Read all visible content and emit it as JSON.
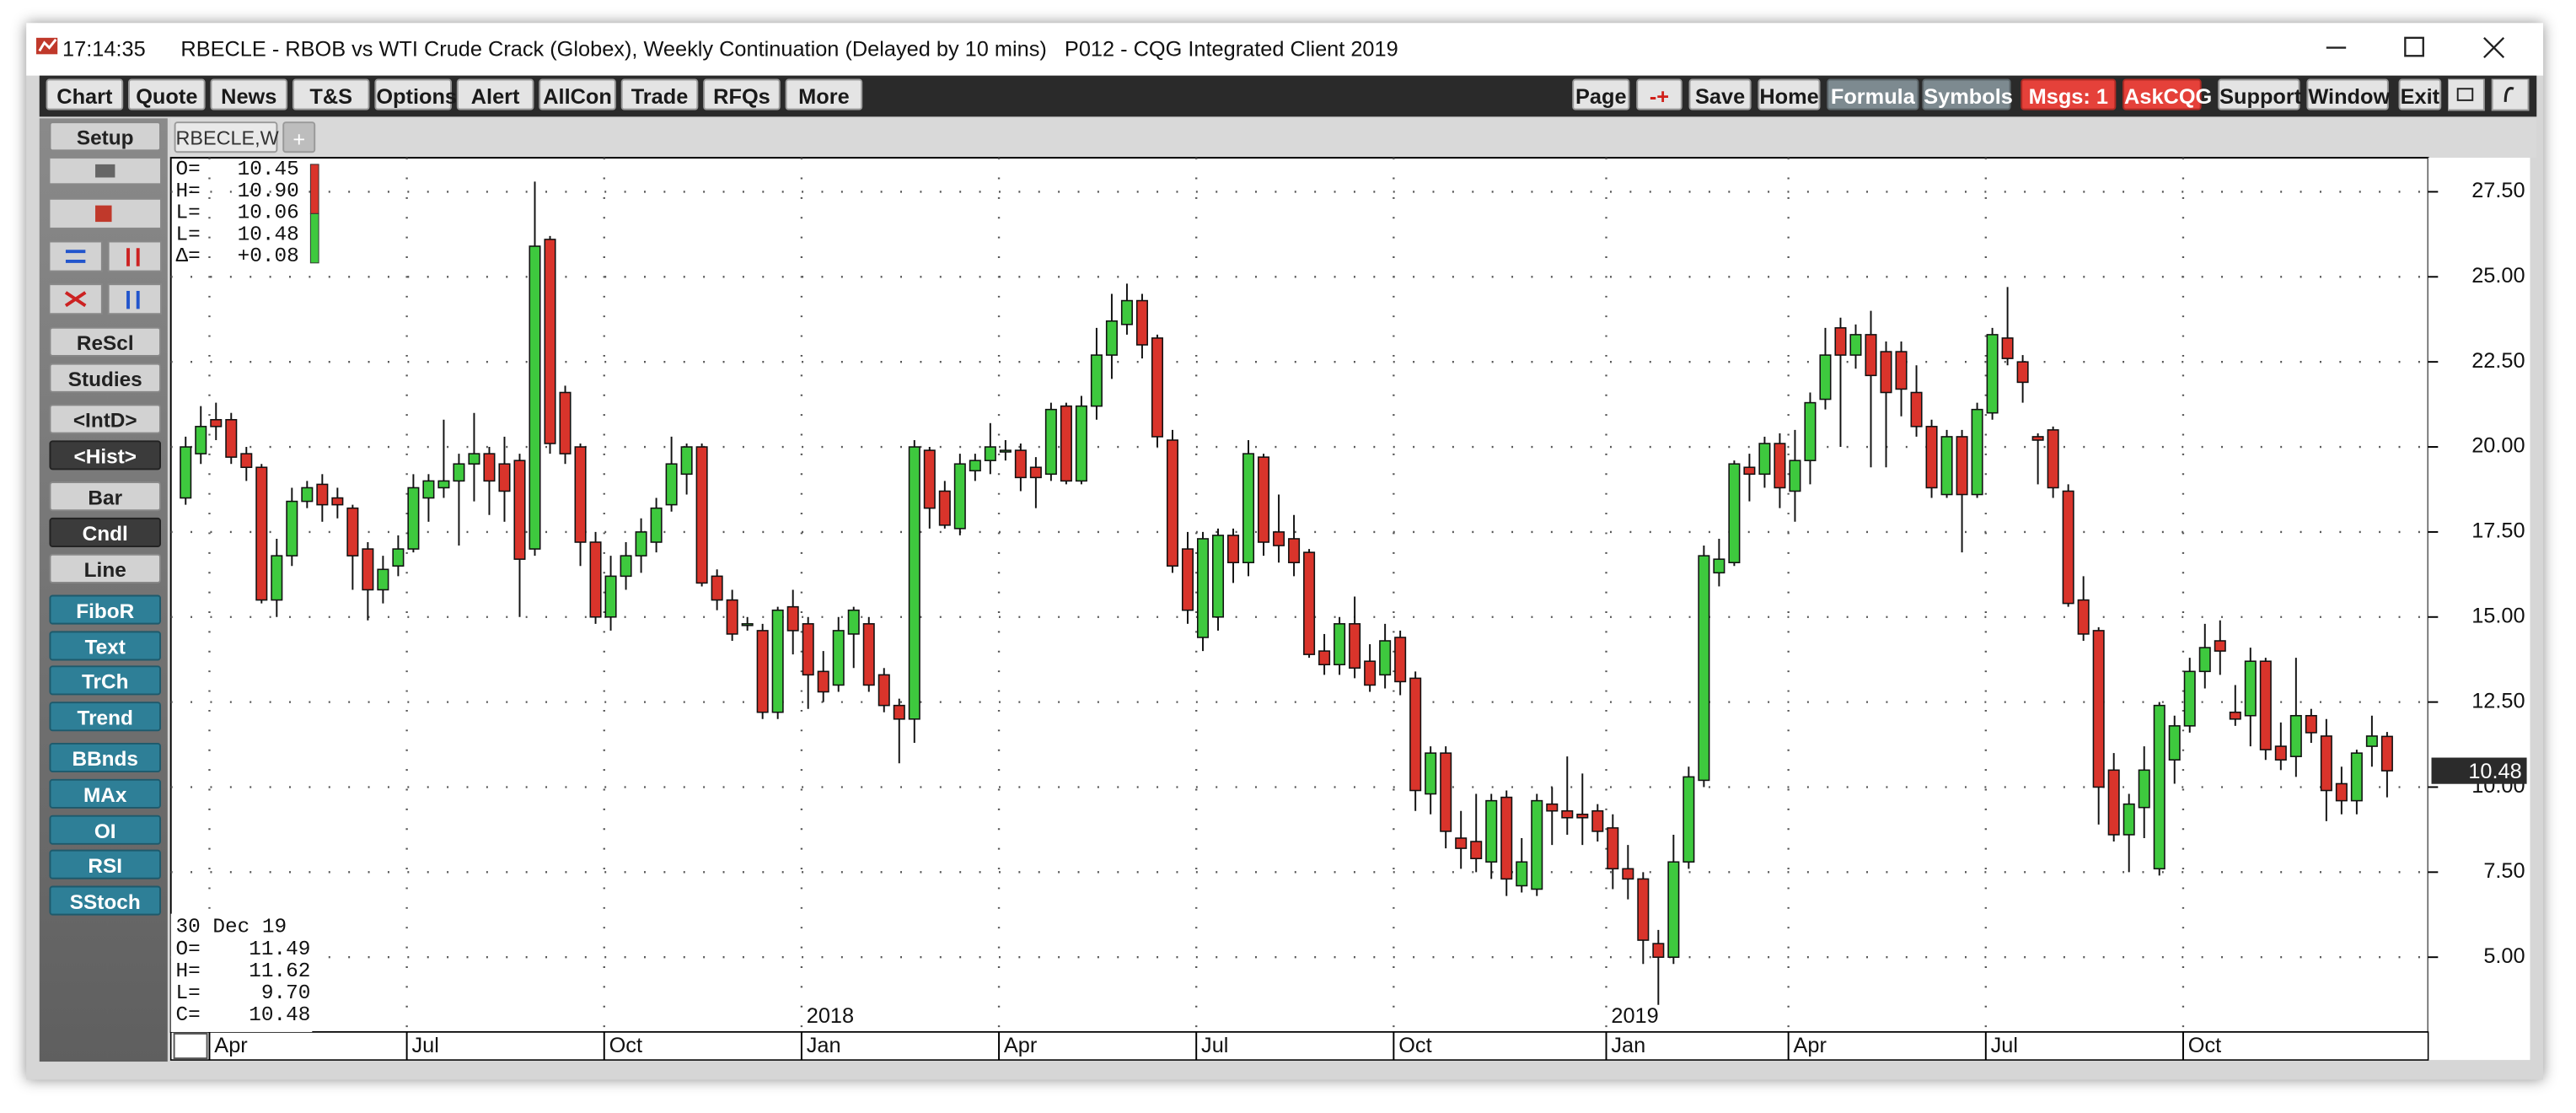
{
  "window": {
    "time": "17:14:35",
    "title": "RBECLE - RBOB vs WTI Crude Crack (Globex), Weekly Continuation (Delayed by 10 mins)   P012 - CQG Integrated Client 2019"
  },
  "toolbar_left": [
    "Chart",
    "Quote",
    "News",
    "T&S",
    "Options",
    "Alert",
    "AllCon",
    "Trade",
    "RFQs",
    "More"
  ],
  "toolbar_right": [
    "Page",
    "-+",
    "Save",
    "Home",
    "Formula",
    "Symbols",
    "Msgs: 1",
    "AskCQG",
    "Support",
    "Window",
    "Exit"
  ],
  "sidebar": [
    "Setup",
    "ReScl",
    "Studies",
    "<IntD>",
    "<Hist>",
    "Bar",
    "Cndl",
    "Line",
    "FiboR",
    "Text",
    "TrCh",
    "Trend",
    "BBnds",
    "MAx",
    "OI",
    "RSI",
    "SStoch"
  ],
  "tab": "RBECLE,W",
  "tab_add": "+",
  "readout_top": [
    {
      "label": "O=",
      "value": "10.45"
    },
    {
      "label": "H=",
      "value": "10.90"
    },
    {
      "label": "L=",
      "value": "10.06"
    },
    {
      "label": "L=",
      "value": "10.48"
    },
    {
      "label": "Δ=",
      "value": "+0.08"
    }
  ],
  "readout_bottom": {
    "date": "30 Dec 19",
    "rows": [
      {
        "label": "O=",
        "value": "11.49"
      },
      {
        "label": "H=",
        "value": "11.62"
      },
      {
        "label": "L=",
        "value": "9.70"
      },
      {
        "label": "C=",
        "value": "10.48"
      }
    ]
  },
  "chart_data": {
    "type": "candlestick",
    "up_color": "#3ec93e",
    "down_color": "#d9342b",
    "grid": true,
    "ylim": [
      2.8,
      28.5
    ],
    "yticks": [
      {
        "value": 5,
        "label": "5.00"
      },
      {
        "value": 7.5,
        "label": "7.50"
      },
      {
        "value": 10,
        "label": "10.00"
      },
      {
        "value": 12.5,
        "label": "12.50"
      },
      {
        "value": 15,
        "label": "15.00"
      },
      {
        "value": 17.5,
        "label": "17.50"
      },
      {
        "value": 20,
        "label": "20.00"
      },
      {
        "value": 22.5,
        "label": "22.50"
      },
      {
        "value": 25,
        "label": "25.00"
      },
      {
        "value": 27.5,
        "label": "27.50"
      }
    ],
    "last_price": 10.48,
    "categories": [
      null,
      null,
      "Apr",
      null,
      null,
      null,
      null,
      null,
      null,
      null,
      null,
      null,
      null,
      null,
      null,
      "Jul",
      null,
      null,
      null,
      null,
      null,
      null,
      null,
      null,
      null,
      null,
      null,
      null,
      "Oct",
      null,
      null,
      null,
      null,
      null,
      null,
      null,
      null,
      null,
      null,
      null,
      null,
      "Jan",
      null,
      null,
      null,
      null,
      null,
      null,
      null,
      null,
      null,
      null,
      null,
      null,
      "Apr",
      null,
      null,
      null,
      null,
      null,
      null,
      null,
      null,
      null,
      null,
      null,
      null,
      "Jul",
      null,
      null,
      null,
      null,
      null,
      null,
      null,
      null,
      null,
      null,
      null,
      null,
      "Oct",
      null,
      null,
      null,
      null,
      null,
      null,
      null,
      null,
      null,
      null,
      null,
      null,
      null,
      "Jan",
      null,
      null,
      null,
      null,
      null,
      null,
      null,
      null,
      null,
      null,
      null,
      "Apr",
      null,
      null,
      null,
      null,
      null,
      null,
      null,
      null,
      null,
      null,
      null,
      null,
      "Jul",
      null,
      null,
      null,
      null,
      null,
      null,
      null,
      null,
      null,
      null,
      null,
      null,
      "Oct",
      null,
      null,
      null,
      null,
      null,
      null,
      null,
      null,
      null,
      null,
      null,
      null,
      null
    ],
    "years": [
      null,
      null,
      null,
      null,
      null,
      null,
      null,
      null,
      null,
      null,
      null,
      null,
      null,
      null,
      null,
      null,
      null,
      null,
      null,
      null,
      null,
      null,
      null,
      null,
      null,
      null,
      null,
      null,
      null,
      null,
      null,
      null,
      null,
      null,
      null,
      null,
      null,
      null,
      null,
      null,
      null,
      "2018",
      null,
      null,
      null,
      null,
      null,
      null,
      null,
      null,
      null,
      null,
      null,
      null,
      null,
      null,
      null,
      null,
      null,
      null,
      null,
      null,
      null,
      null,
      null,
      null,
      null,
      null,
      null,
      null,
      null,
      null,
      null,
      null,
      null,
      null,
      null,
      null,
      null,
      null,
      null,
      null,
      null,
      null,
      null,
      null,
      null,
      null,
      null,
      null,
      null,
      null,
      null,
      null,
      "2019",
      null,
      null,
      null,
      null,
      null,
      null,
      null,
      null,
      null,
      null,
      null,
      null,
      null,
      null,
      null,
      null,
      null,
      null,
      null,
      null,
      null,
      null,
      null,
      null,
      null,
      null,
      null,
      null,
      null,
      null,
      null,
      null,
      null,
      null,
      null,
      null,
      null,
      null,
      null,
      null,
      null,
      null,
      null,
      null,
      null,
      null,
      null,
      null,
      null,
      null,
      null
    ],
    "open": [
      18.5,
      19.8,
      20.8,
      20.8,
      19.8,
      19.4,
      15.5,
      16.8,
      18.4,
      18.9,
      18.5,
      18.2,
      17.0,
      15.8,
      16.5,
      17.0,
      18.5,
      18.8,
      19.0,
      19.5,
      19.8,
      19.5,
      19.6,
      17.0,
      26.1,
      21.6,
      20.0,
      17.2,
      15.0,
      16.2,
      16.8,
      17.2,
      18.3,
      19.2,
      20.0,
      16.2,
      15.5,
      14.8,
      14.6,
      12.2,
      15.3,
      14.8,
      13.4,
      13.0,
      14.5,
      14.8,
      13.3,
      12.4,
      12.0,
      19.9,
      18.7,
      17.6,
      19.3,
      19.6,
      19.9,
      19.9,
      19.4,
      19.2,
      21.2,
      19.0,
      21.2,
      22.7,
      23.6,
      24.3,
      23.2,
      20.2,
      17.0,
      14.4,
      15.0,
      17.4,
      16.6,
      19.7,
      17.5,
      17.3,
      16.9,
      14.0,
      13.6,
      14.8,
      13.7,
      13.3,
      14.4,
      13.2,
      9.8,
      11.0,
      8.5,
      8.4,
      7.8,
      9.7,
      7.1,
      7.0,
      9.5,
      9.3,
      9.2,
      9.3,
      8.8,
      7.6,
      7.3,
      5.4,
      5.0,
      7.8,
      10.2,
      16.3,
      16.6,
      19.4,
      19.2,
      20.1,
      18.7,
      19.6,
      21.4,
      23.5,
      22.7,
      23.3,
      22.8,
      22.8,
      21.6,
      20.6,
      18.6,
      20.3,
      18.6,
      21.0,
      23.2,
      22.5,
      20.3,
      20.5,
      18.7,
      15.5,
      14.6,
      10.5,
      8.6,
      9.4,
      7.6,
      10.8,
      11.8,
      13.4,
      14.3,
      12.2,
      12.1,
      13.7,
      11.2,
      10.9,
      12.1,
      11.5,
      10.1,
      9.6,
      11.2,
      11.49
    ],
    "high": [
      20.3,
      21.2,
      21.3,
      21.0,
      20.0,
      19.5,
      17.3,
      18.8,
      19.0,
      19.2,
      18.8,
      18.3,
      17.2,
      16.8,
      17.4,
      19.2,
      19.2,
      20.8,
      19.8,
      21.0,
      20.0,
      20.3,
      19.8,
      27.8,
      26.2,
      21.8,
      20.1,
      17.5,
      16.8,
      17.2,
      17.9,
      18.5,
      20.3,
      20.1,
      20.1,
      16.4,
      15.8,
      15.0,
      14.8,
      15.3,
      15.8,
      15.0,
      14.0,
      15.0,
      15.3,
      15.0,
      13.5,
      12.6,
      20.2,
      20.0,
      19.0,
      19.8,
      19.8,
      20.7,
      20.2,
      20.1,
      19.7,
      21.3,
      21.3,
      21.5,
      23.5,
      24.5,
      24.8,
      24.5,
      23.3,
      20.5,
      17.5,
      17.5,
      17.6,
      17.6,
      20.2,
      19.8,
      18.6,
      18.0,
      17.0,
      14.5,
      15.0,
      15.6,
      14.2,
      14.8,
      14.6,
      13.4,
      11.2,
      11.2,
      9.3,
      9.8,
      9.8,
      9.9,
      8.5,
      9.8,
      10.0,
      10.9,
      10.4,
      9.5,
      9.2,
      8.3,
      7.5,
      5.8,
      8.6,
      10.6,
      17.1,
      17.3,
      19.6,
      19.8,
      20.3,
      20.4,
      20.5,
      21.6,
      23.5,
      23.8,
      23.6,
      24.0,
      23.1,
      23.1,
      22.4,
      20.8,
      20.5,
      20.5,
      21.3,
      23.5,
      24.7,
      22.7,
      20.4,
      20.6,
      18.9,
      16.2,
      14.7,
      11.0,
      9.8,
      11.2,
      12.5,
      12.1,
      13.8,
      14.8,
      14.9,
      13.0,
      14.1,
      13.8,
      11.9,
      13.8,
      12.3,
      12.0,
      10.6,
      11.1,
      12.1,
      11.62
    ],
    "low": [
      18.3,
      19.5,
      20.2,
      19.5,
      19.0,
      15.4,
      15.0,
      16.5,
      18.2,
      17.8,
      17.9,
      15.8,
      14.9,
      15.4,
      16.2,
      16.9,
      17.8,
      18.5,
      17.1,
      18.4,
      18.0,
      17.8,
      15.0,
      16.8,
      19.8,
      19.5,
      16.5,
      14.8,
      14.6,
      15.8,
      16.3,
      16.9,
      18.1,
      18.6,
      15.9,
      15.2,
      14.3,
      14.6,
      12.0,
      12.0,
      13.9,
      12.3,
      12.5,
      12.8,
      13.5,
      12.8,
      12.2,
      10.7,
      11.3,
      17.6,
      17.6,
      17.4,
      19.0,
      19.2,
      19.6,
      18.7,
      18.2,
      19.0,
      18.9,
      18.9,
      20.8,
      22.0,
      23.3,
      22.6,
      20.0,
      16.3,
      14.8,
      14.0,
      14.6,
      16.0,
      16.2,
      16.8,
      16.6,
      16.2,
      13.8,
      13.3,
      13.3,
      13.2,
      12.8,
      12.9,
      12.7,
      9.3,
      9.2,
      8.2,
      7.6,
      7.5,
      7.3,
      6.8,
      6.9,
      6.8,
      8.3,
      8.6,
      8.3,
      8.4,
      7.0,
      6.7,
      4.8,
      3.6,
      4.8,
      7.6,
      10.0,
      15.9,
      16.5,
      18.4,
      18.8,
      18.2,
      17.8,
      18.9,
      21.1,
      20.0,
      22.3,
      19.4,
      19.4,
      20.9,
      20.3,
      18.5,
      18.5,
      16.9,
      18.5,
      20.8,
      22.4,
      21.3,
      18.9,
      18.5,
      15.3,
      14.3,
      8.9,
      8.4,
      7.5,
      8.5,
      7.4,
      10.1,
      11.6,
      12.9,
      13.3,
      11.8,
      11.2,
      10.8,
      10.5,
      10.3,
      11.3,
      9.0,
      9.2,
      9.2,
      10.6,
      9.7
    ],
    "close": [
      20.0,
      20.6,
      20.6,
      19.7,
      19.4,
      15.5,
      16.8,
      18.4,
      18.8,
      18.3,
      18.3,
      16.8,
      15.8,
      16.4,
      17.0,
      18.8,
      19.0,
      19.0,
      19.5,
      19.8,
      19.0,
      18.7,
      16.7,
      25.9,
      20.1,
      19.8,
      17.2,
      15.0,
      16.2,
      16.8,
      17.5,
      18.2,
      19.5,
      20.0,
      16.0,
      15.5,
      14.5,
      14.8,
      12.2,
      15.2,
      14.6,
      13.3,
      12.8,
      14.6,
      15.2,
      13.0,
      12.4,
      12.0,
      20.0,
      18.2,
      17.7,
      19.5,
      19.6,
      20.0,
      19.9,
      19.1,
      19.1,
      21.1,
      19.0,
      21.2,
      22.7,
      23.7,
      24.3,
      23.0,
      20.3,
      16.5,
      15.2,
      17.3,
      17.4,
      16.6,
      19.8,
      17.2,
      17.1,
      16.6,
      13.9,
      13.6,
      14.8,
      13.5,
      13.0,
      14.3,
      13.1,
      9.9,
      11.0,
      8.7,
      8.2,
      7.9,
      9.6,
      7.3,
      7.8,
      9.6,
      9.3,
      9.1,
      9.1,
      8.7,
      7.6,
      7.3,
      5.5,
      5.0,
      7.8,
      10.3,
      16.8,
      16.7,
      19.5,
      19.2,
      20.1,
      18.8,
      19.6,
      21.3,
      22.7,
      22.7,
      23.3,
      22.1,
      21.6,
      21.7,
      20.6,
      18.8,
      20.3,
      18.6,
      21.1,
      23.3,
      22.6,
      21.9,
      20.2,
      18.8,
      15.4,
      14.5,
      10.0,
      8.6,
      9.5,
      10.5,
      12.4,
      11.8,
      13.4,
      14.1,
      14.0,
      12.0,
      13.7,
      11.1,
      10.8,
      12.1,
      11.6,
      9.9,
      9.6,
      11.0,
      11.5,
      10.48
    ]
  }
}
